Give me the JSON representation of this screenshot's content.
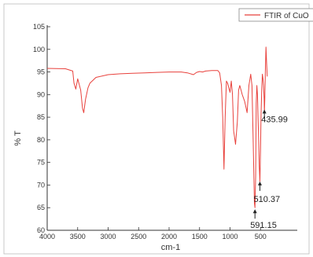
{
  "chart_data": {
    "type": "line",
    "legend": {
      "placement": "top-right",
      "entries": [
        "FTIR of CuO"
      ]
    },
    "xlabel": "cm-1",
    "ylabel": "% T",
    "xlim": [
      4000,
      0
    ],
    "ylim": [
      60,
      105
    ],
    "x_ticks": [
      4000,
      3500,
      3000,
      2500,
      2000,
      1500,
      1000,
      500
    ],
    "y_ticks": [
      60,
      65,
      70,
      75,
      80,
      85,
      90,
      95,
      100,
      105
    ],
    "grid": false,
    "colors": {
      "series": "#e8413c",
      "axis": "#333333",
      "frame": "#bbbbbb"
    },
    "series": [
      {
        "name": "FTIR of CuO",
        "x": [
          4000,
          3700,
          3580,
          3560,
          3530,
          3500,
          3450,
          3420,
          3400,
          3370,
          3330,
          3300,
          3200,
          3000,
          2800,
          2600,
          2400,
          2200,
          2000,
          1800,
          1700,
          1600,
          1550,
          1500,
          1450,
          1400,
          1300,
          1250,
          1200,
          1170,
          1140,
          1120,
          1100,
          1080,
          1060,
          1040,
          1000,
          980,
          960,
          940,
          910,
          880,
          860,
          840,
          800,
          760,
          720,
          690,
          660,
          640,
          620,
          600,
          591,
          580,
          570,
          560,
          550,
          540,
          530,
          520,
          510,
          500,
          490,
          480,
          470,
          460,
          450,
          440,
          436,
          430,
          420,
          410,
          400,
          390
        ],
        "y": [
          95.8,
          95.7,
          95.2,
          92.5,
          91.2,
          93.5,
          91.0,
          87.0,
          86.0,
          89.0,
          91.5,
          92.5,
          93.8,
          94.4,
          94.6,
          94.7,
          94.8,
          94.9,
          95.0,
          95.0,
          94.8,
          94.4,
          94.9,
          95.1,
          95.0,
          95.2,
          95.3,
          95.3,
          95.3,
          94.8,
          92.0,
          85.0,
          73.5,
          85.0,
          93.0,
          92.5,
          90.5,
          93.0,
          90.0,
          82.0,
          79.0,
          84.0,
          91.0,
          92.0,
          90.0,
          88.5,
          86.0,
          92.0,
          94.5,
          92.0,
          80.0,
          66.0,
          65.0,
          72.0,
          88.0,
          92.0,
          90.0,
          85.0,
          80.0,
          74.0,
          70.8,
          78.0,
          86.0,
          91.0,
          94.5,
          93.5,
          92.0,
          89.0,
          86.0,
          89.0,
          95.0,
          100.5,
          97.0,
          94.0
        ]
      }
    ],
    "annotations": [
      {
        "text": "591.15",
        "x": 591,
        "y": 65
      },
      {
        "text": "510.37",
        "x": 510,
        "y": 70.8
      },
      {
        "text": "435.99",
        "x": 436,
        "y": 86
      }
    ]
  }
}
